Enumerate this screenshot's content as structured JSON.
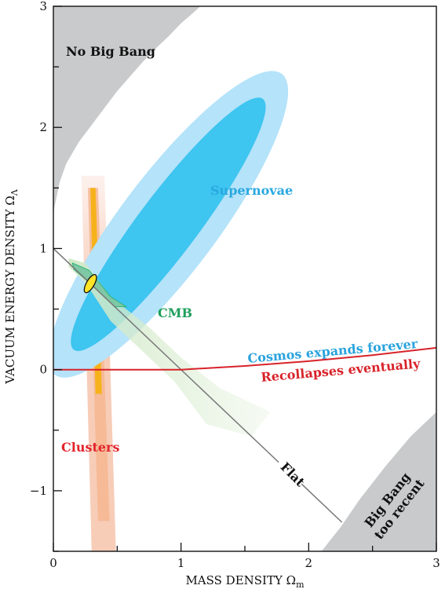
{
  "chart_data": {
    "type": "contour",
    "xlabel": "MASS DENSITY Ω",
    "xlabel_sub": "m",
    "ylabel": "VACUUM ENERGY DENSITY Ω",
    "ylabel_sub": "Λ",
    "xlim": [
      0,
      3
    ],
    "ylim": [
      -1.5,
      3
    ],
    "x_ticks": [
      0,
      1,
      2,
      3
    ],
    "x_tick_labels": [
      "0",
      "1",
      "2",
      "3"
    ],
    "y_ticks": [
      -1,
      0,
      1,
      2,
      3
    ],
    "y_tick_labels": [
      "−1",
      "0",
      "1",
      "2",
      "3"
    ],
    "regions": [
      {
        "name": "No Big Bang",
        "label": "No Big Bang",
        "color": "#c8cacc"
      },
      {
        "name": "Big Bang too recent",
        "label_lines": [
          "Big Bang",
          "too recent"
        ],
        "color": "#c8cacc"
      }
    ],
    "constraints": [
      {
        "name": "Supernovae",
        "label": "Supernovae",
        "color_inner": "#3ec5f0",
        "color_outer": "#b4e3fa",
        "label_color": "#29a8e0",
        "center": [
          0.9,
          1.2
        ]
      },
      {
        "name": "CMB",
        "label": "CMB",
        "color_inner": "#2fb57a",
        "color_outer": "#d3ebc6",
        "label_color": "#1f9e5c",
        "center": [
          0.8,
          0.2
        ]
      },
      {
        "name": "Clusters",
        "label": "Clusters",
        "color_inner": "#f6b21a",
        "color_outer": "#f8d3c0",
        "label_color": "#e2242b",
        "center": [
          0.33,
          0.0
        ]
      }
    ],
    "lines": [
      {
        "name": "Flat",
        "label": "Flat",
        "x": [
          0,
          2.26
        ],
        "y": [
          1,
          -1.26
        ],
        "color": "#777777"
      },
      {
        "name": "Expansion boundary",
        "x": [
          0,
          0.5,
          1,
          1.5,
          2,
          2.5,
          3
        ],
        "y": [
          0,
          0,
          0.0,
          0.03,
          0.07,
          0.12,
          0.18
        ],
        "color": "#d8232a"
      }
    ],
    "annotations": [
      {
        "text": "Cosmos expands forever",
        "color": "#2aa3dd"
      },
      {
        "text": "Recollapses eventually",
        "color": "#d8232a"
      }
    ],
    "best_fit": {
      "x": 0.29,
      "y": 0.71,
      "color": "#ffe326"
    }
  }
}
